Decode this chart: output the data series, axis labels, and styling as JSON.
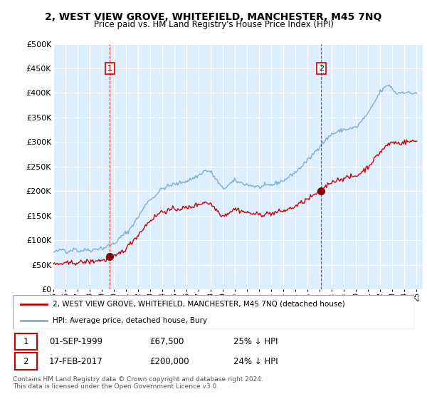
{
  "title": "2, WEST VIEW GROVE, WHITEFIELD, MANCHESTER, M45 7NQ",
  "subtitle": "Price paid vs. HM Land Registry's House Price Index (HPI)",
  "legend_line1": "2, WEST VIEW GROVE, WHITEFIELD, MANCHESTER, M45 7NQ (detached house)",
  "legend_line2": "HPI: Average price, detached house, Bury",
  "annotation1_date": "01-SEP-1999",
  "annotation1_price": "£67,500",
  "annotation1_hpi": "25% ↓ HPI",
  "annotation2_date": "17-FEB-2017",
  "annotation2_price": "£200,000",
  "annotation2_hpi": "24% ↓ HPI",
  "footnote": "Contains HM Land Registry data © Crown copyright and database right 2024.\nThis data is licensed under the Open Government Licence v3.0.",
  "hpi_color": "#7bafd4",
  "price_color": "#cc0000",
  "bg_color": "#ddeeff",
  "ylim": [
    0,
    500000
  ],
  "yticks": [
    0,
    50000,
    100000,
    150000,
    200000,
    250000,
    300000,
    350000,
    400000,
    450000,
    500000
  ],
  "ytick_labels": [
    "£0",
    "£50K",
    "£100K",
    "£150K",
    "£200K",
    "£250K",
    "£300K",
    "£350K",
    "£400K",
    "£450K",
    "£500K"
  ],
  "sale1_x": 1999.67,
  "sale1_y": 67500,
  "sale2_x": 2017.12,
  "sale2_y": 200000,
  "xmin": 1995,
  "xmax": 2025
}
